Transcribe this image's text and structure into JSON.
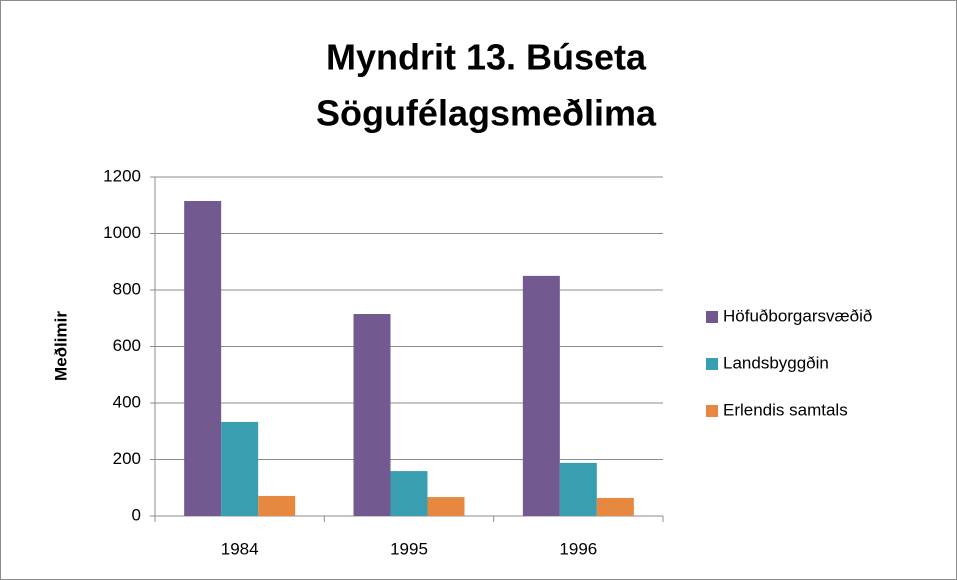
{
  "chart_data": {
    "type": "bar",
    "title": [
      "Myndrit 13. Búseta",
      "Sögufélagsmeðlima"
    ],
    "ylabel": "Meðlimir",
    "categories": [
      "1984",
      "1995",
      "1996"
    ],
    "series": [
      {
        "name": "Höfuðborgarsvæðið",
        "color": "#72598f",
        "values": [
          1115,
          715,
          850
        ]
      },
      {
        "name": "Landsbyggðin",
        "color": "#3a9eb1",
        "values": [
          333,
          159,
          188
        ]
      },
      {
        "name": "Erlendis samtals",
        "color": "#e6883f",
        "values": [
          71,
          67,
          64
        ]
      }
    ],
    "ylim": [
      0,
      1200
    ],
    "yticks": [
      0,
      200,
      400,
      600,
      800,
      1000,
      1200
    ],
    "grid": true,
    "legend": "right"
  }
}
